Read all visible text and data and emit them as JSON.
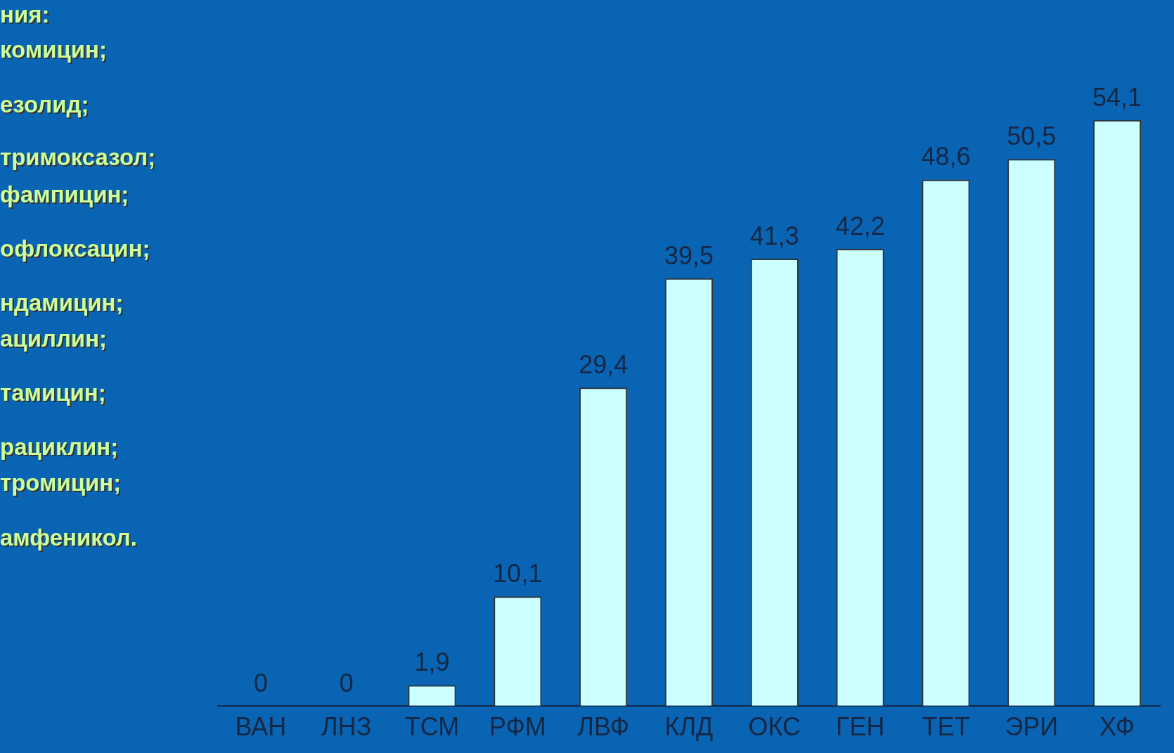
{
  "chart_data": {
    "type": "bar",
    "categories": [
      "ВАН",
      "ЛНЗ",
      "ТСМ",
      "РФМ",
      "ЛВФ",
      "КЛД",
      "ОКС",
      "ГЕН",
      "ТЕТ",
      "ЭРИ",
      "ХФ"
    ],
    "values": [
      0,
      0,
      1.9,
      10.1,
      29.4,
      39.5,
      41.3,
      42.2,
      48.6,
      50.5,
      54.1
    ],
    "value_labels": [
      "0",
      "0",
      "1,9",
      "10,1",
      "29,4",
      "39,5",
      "41,3",
      "42,2",
      "48,6",
      "50,5",
      "54,1"
    ],
    "color": "#ccffff",
    "annotations": [
      "ния:",
      "комицин;",
      "езолид;",
      "тримоксазол;",
      "фампицин;",
      "офлоксацин;",
      "ндамицин;",
      "ациллин;",
      "тамицин;",
      "рациклин;",
      "тромицин;",
      "амфеникол."
    ],
    "grid": false,
    "legend": false
  }
}
